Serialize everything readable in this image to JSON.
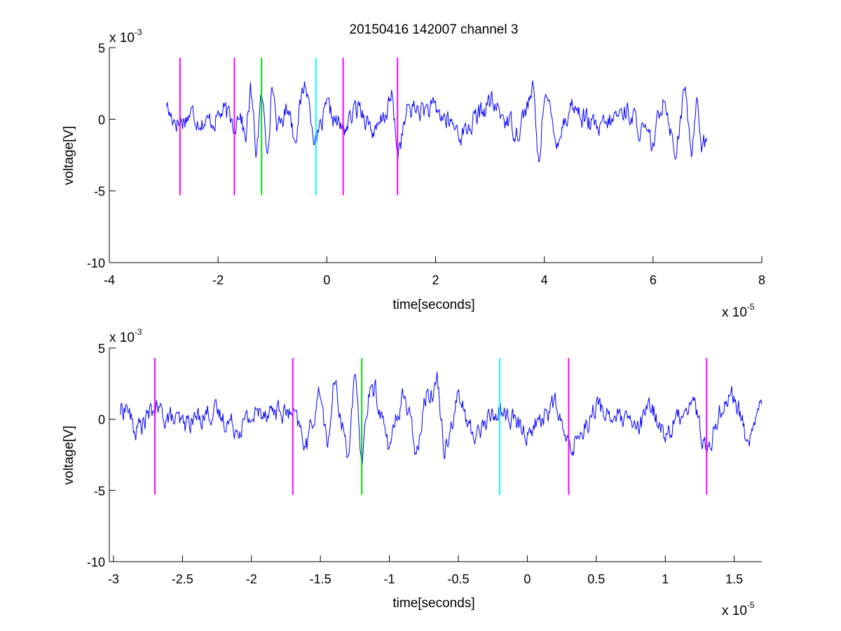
{
  "figure": {
    "title": "20150416 142007 channel 3",
    "colors": {
      "trace": "#0000ff",
      "marker_magenta": "#ff00ff",
      "marker_green": "#00e000",
      "marker_cyan": "#00ffff",
      "axes": "#000000",
      "background": "#ffffff"
    }
  },
  "chart_data": [
    {
      "type": "line",
      "title": "20150416 142007 channel 3",
      "xlabel": "time[seconds]",
      "ylabel": "voltage[V]",
      "x_multiplier_base": "x 10",
      "x_multiplier_exp": "-5",
      "y_multiplier_base": "x 10",
      "y_multiplier_exp": "-3",
      "xlim": [
        -4,
        8
      ],
      "ylim": [
        -10,
        5
      ],
      "xticks": [
        -4,
        -2,
        0,
        2,
        4,
        6,
        8
      ],
      "xtick_labels": [
        "-4",
        "-2",
        "0",
        "2",
        "4",
        "6",
        "8"
      ],
      "yticks": [
        -10,
        -5,
        0,
        5
      ],
      "ytick_labels": [
        "-10",
        "-5",
        "0",
        "5"
      ],
      "grid": false,
      "legend": "none",
      "series": [
        {
          "style": "noisy waveform",
          "color": "#0000ff",
          "x_range": [
            -2.95,
            7.0
          ],
          "x": [
            -2.95,
            -2.9,
            -2.7,
            -2.5,
            -2.2,
            -1.9,
            -1.7,
            -1.6,
            -1.5,
            -1.4,
            -1.3,
            -1.2,
            -1.1,
            -1.0,
            -0.9,
            -0.7,
            -0.6,
            -0.4,
            -0.2,
            0,
            0.3,
            0.6,
            0.9,
            1.2,
            1.3,
            1.5,
            2.0,
            2.5,
            3.0,
            3.5,
            3.8,
            3.9,
            4.0,
            4.2,
            4.5,
            5.0,
            5.5,
            6.0,
            6.2,
            6.4,
            6.6,
            6.7,
            6.8,
            6.9,
            7.0
          ],
          "y": [
            1.6,
            0.5,
            -0.3,
            0.6,
            -0.4,
            0.7,
            -0.5,
            1.1,
            -2.1,
            2.8,
            -3.1,
            2.3,
            -2.8,
            3.4,
            -1.2,
            1.6,
            -1.9,
            3.6,
            -2.3,
            0.9,
            -1.1,
            1.4,
            -1.6,
            2.1,
            -3.3,
            1.0,
            0.8,
            -1.4,
            1.6,
            -1.1,
            2.7,
            -4.7,
            3.2,
            -2.1,
            1.4,
            -1.2,
            1.0,
            -2.6,
            2.7,
            -3.2,
            3.1,
            -4.2,
            2.7,
            -2.4,
            -2.3
          ]
        }
      ],
      "markers": [
        {
          "x": -2.7,
          "color": "magenta"
        },
        {
          "x": -1.7,
          "color": "magenta"
        },
        {
          "x": -1.2,
          "color": "green"
        },
        {
          "x": -0.2,
          "color": "cyan"
        },
        {
          "x": 0.3,
          "color": "magenta"
        },
        {
          "x": 1.3,
          "color": "magenta"
        }
      ],
      "marker_yrange": [
        -5.3,
        4.3
      ]
    },
    {
      "type": "line",
      "title": "",
      "xlabel": "time[seconds]",
      "ylabel": "voltage[V]",
      "x_multiplier_base": "x 10",
      "x_multiplier_exp": "-5",
      "y_multiplier_base": "x 10",
      "y_multiplier_exp": "-3",
      "xlim": [
        -3.03,
        1.7
      ],
      "ylim": [
        -10,
        5
      ],
      "xticks": [
        -3,
        -2.5,
        -2,
        -1.5,
        -1,
        -0.5,
        0,
        0.5,
        1,
        1.5
      ],
      "xtick_labels": [
        "-3",
        "-2.5",
        "-2",
        "-1.5",
        "-1",
        "-0.5",
        "0",
        "0.5",
        "1",
        "1.5"
      ],
      "yticks": [
        -10,
        -5,
        0,
        5
      ],
      "ytick_labels": [
        "-10",
        "-5",
        "0",
        "5"
      ],
      "grid": false,
      "legend": "none",
      "series": [
        {
          "style": "noisy waveform",
          "color": "#0000ff",
          "x_range": [
            -2.95,
            1.7
          ],
          "x": [
            -2.95,
            -2.9,
            -2.85,
            -2.7,
            -2.5,
            -2.3,
            -2.1,
            -1.9,
            -1.7,
            -1.6,
            -1.5,
            -1.45,
            -1.4,
            -1.3,
            -1.25,
            -1.2,
            -1.15,
            -1.1,
            -1.0,
            -0.9,
            -0.8,
            -0.75,
            -0.65,
            -0.6,
            -0.5,
            -0.4,
            -0.2,
            0,
            0.2,
            0.3,
            0.5,
            0.8,
            0.9,
            1.0,
            1.2,
            1.3,
            1.4,
            1.5,
            1.6,
            1.7
          ],
          "y": [
            0.8,
            1.3,
            -1.2,
            0.9,
            -0.6,
            0.8,
            -0.7,
            1.0,
            0.4,
            -2.5,
            3.0,
            -3.0,
            3.5,
            -3.2,
            3.8,
            -4.1,
            2.4,
            2.7,
            -2.8,
            2.6,
            -3.1,
            2.0,
            3.5,
            -2.7,
            2.3,
            -1.6,
            1.0,
            -1.3,
            1.5,
            -2.9,
            1.2,
            -1.0,
            1.3,
            -1.6,
            2.1,
            -3.4,
            1.2,
            2.5,
            -2.5,
            1.9
          ]
        }
      ],
      "markers": [
        {
          "x": -2.7,
          "color": "magenta"
        },
        {
          "x": -1.7,
          "color": "magenta"
        },
        {
          "x": -1.2,
          "color": "green"
        },
        {
          "x": -0.2,
          "color": "cyan"
        },
        {
          "x": 0.3,
          "color": "magenta"
        },
        {
          "x": 1.3,
          "color": "magenta"
        }
      ],
      "marker_yrange": [
        -5.3,
        4.3
      ]
    }
  ]
}
